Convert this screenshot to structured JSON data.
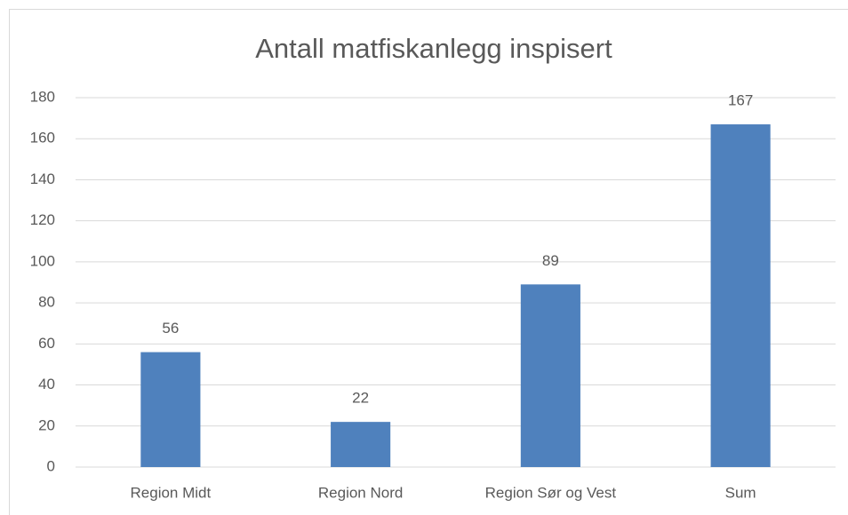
{
  "chart_data": {
    "type": "bar",
    "title": "Antall matfiskanlegg inspisert",
    "categories": [
      "Region Midt",
      "Region Nord",
      "Region Sør og Vest",
      "Sum"
    ],
    "values": [
      56,
      22,
      89,
      167
    ],
    "color": "#4f81bd",
    "ylim": [
      0,
      180
    ],
    "yticks": [
      0,
      20,
      40,
      60,
      80,
      100,
      120,
      140,
      160,
      180
    ],
    "grid": true
  }
}
